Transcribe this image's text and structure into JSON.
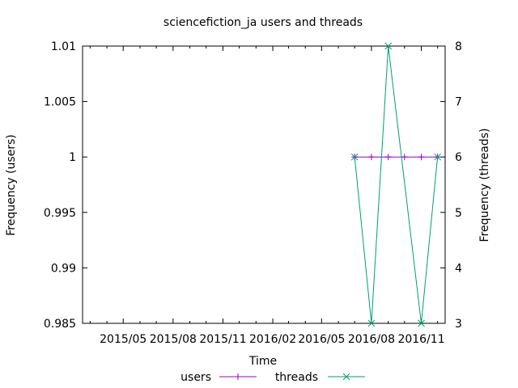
{
  "chart_data": {
    "type": "line",
    "title": "sciencefiction_ja users and threads",
    "xlabel": "Time",
    "ylabel_left": "Frequency (users)",
    "ylabel_right": "Frequency (threads)",
    "x_range": [
      "2015-02-15",
      "2016-12-15"
    ],
    "x_ticks": [
      "2015/05",
      "2015/08",
      "2015/11",
      "2016/02",
      "2016/05",
      "2016/08",
      "2016/11"
    ],
    "x_tick_dates": [
      "2015-05-01",
      "2015-08-01",
      "2015-11-01",
      "2016-02-01",
      "2016-05-01",
      "2016-08-01",
      "2016-11-01"
    ],
    "ylim_left": [
      0.985,
      1.01
    ],
    "y_ticks_left": [
      "0.985",
      "0.99",
      "0.995",
      "1",
      "1.005",
      "1.01"
    ],
    "y_tick_values_left": [
      0.985,
      0.99,
      0.995,
      1,
      1.005,
      1.01
    ],
    "ylim_right": [
      3,
      8
    ],
    "y_ticks_right": [
      "3",
      "4",
      "5",
      "6",
      "7",
      "8"
    ],
    "y_tick_values_right": [
      3,
      4,
      5,
      6,
      7,
      8
    ],
    "grid": false,
    "legend_position": "bottom-center",
    "series": [
      {
        "name": "users",
        "axis": "left",
        "color": "#9400d3",
        "marker": "plus",
        "x": [
          "2016-07-01",
          "2016-08-01",
          "2016-09-01",
          "2016-10-01",
          "2016-11-01",
          "2016-12-01"
        ],
        "y": [
          1,
          1,
          1,
          1,
          1,
          1
        ]
      },
      {
        "name": "threads",
        "axis": "right",
        "color": "#009e73",
        "marker": "cross",
        "x": [
          "2016-07-01",
          "2016-08-01",
          "2016-09-01",
          "2016-11-01",
          "2016-12-01"
        ],
        "y": [
          6,
          3,
          8,
          3,
          6
        ]
      }
    ]
  }
}
